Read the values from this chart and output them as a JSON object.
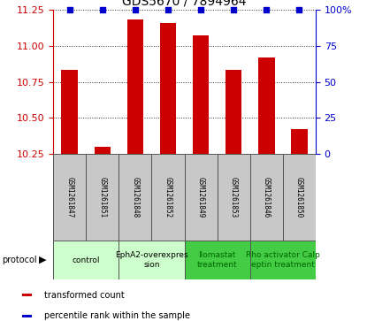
{
  "title": "GDS5670 / 7894964",
  "samples": [
    "GSM1261847",
    "GSM1261851",
    "GSM1261848",
    "GSM1261852",
    "GSM1261849",
    "GSM1261853",
    "GSM1261846",
    "GSM1261850"
  ],
  "transformed_counts": [
    10.83,
    10.3,
    11.18,
    11.16,
    11.07,
    10.83,
    10.92,
    10.42
  ],
  "percentile_ranks": [
    100,
    100,
    100,
    100,
    100,
    100,
    100,
    100
  ],
  "ylim_left": [
    10.25,
    11.25
  ],
  "ylim_right": [
    0,
    100
  ],
  "yticks_left": [
    10.25,
    10.5,
    10.75,
    11.0,
    11.25
  ],
  "yticks_right": [
    0,
    25,
    50,
    75,
    100
  ],
  "bar_color": "#cc0000",
  "dot_color": "#0000cc",
  "protocol_groups": [
    {
      "label": "control",
      "start": 0,
      "end": 1,
      "color": "#ccffcc",
      "text_color": "#000000"
    },
    {
      "label": "EphA2-overexpres\nsion",
      "start": 2,
      "end": 3,
      "color": "#ccffcc",
      "text_color": "#000000"
    },
    {
      "label": "Ilomastat\ntreatment",
      "start": 4,
      "end": 5,
      "color": "#44cc44",
      "text_color": "#006600"
    },
    {
      "label": "Rho activator Calp\neptin treatment",
      "start": 6,
      "end": 7,
      "color": "#44cc44",
      "text_color": "#006600"
    }
  ],
  "sample_box_color": "#c8c8c8",
  "grid_style": "dotted",
  "grid_color": "#000000",
  "background_color": "#ffffff"
}
